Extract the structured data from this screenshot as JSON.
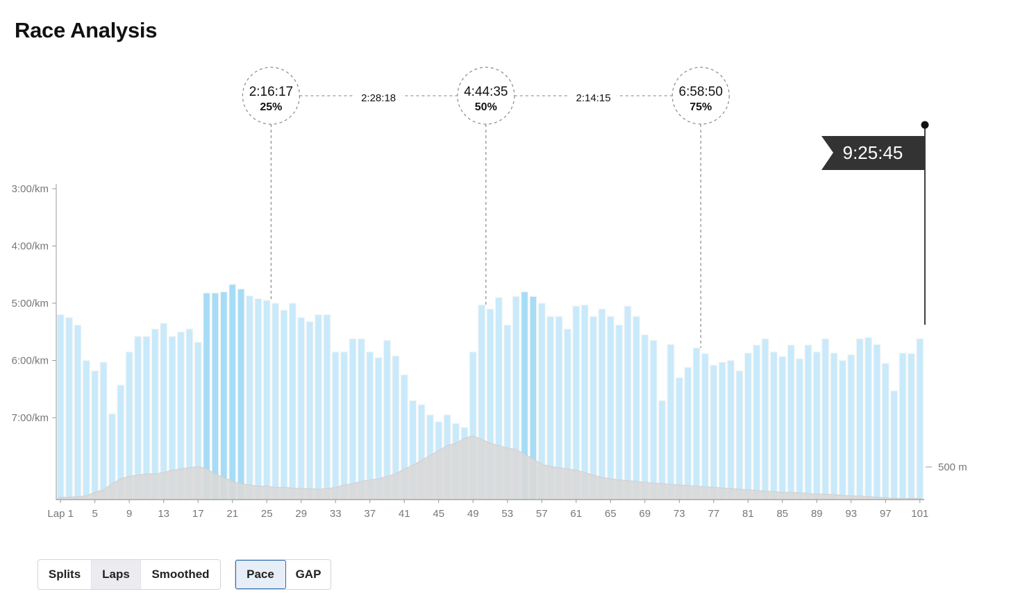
{
  "page": {
    "title": "Race Analysis"
  },
  "controls": {
    "view_group": [
      {
        "label": "Splits",
        "active": false
      },
      {
        "label": "Laps",
        "active": true
      },
      {
        "label": "Smoothed",
        "active": false
      }
    ],
    "metric_group": [
      {
        "label": "Pace",
        "active": true
      },
      {
        "label": "GAP",
        "active": false
      }
    ]
  },
  "chart_data": {
    "type": "bar",
    "x_tick_labels": [
      "Lap 1",
      "5",
      "9",
      "13",
      "17",
      "21",
      "25",
      "29",
      "33",
      "37",
      "41",
      "45",
      "49",
      "53",
      "57",
      "61",
      "65",
      "69",
      "73",
      "77",
      "81",
      "85",
      "89",
      "93",
      "97",
      "101"
    ],
    "x_ticks": [
      1,
      5,
      9,
      13,
      17,
      21,
      25,
      29,
      33,
      37,
      41,
      45,
      49,
      53,
      57,
      61,
      65,
      69,
      73,
      77,
      81,
      85,
      89,
      93,
      97,
      101
    ],
    "y_axis": {
      "unit": "min/km",
      "inverted": true,
      "tick_values": [
        3,
        4,
        5,
        6,
        7
      ],
      "tick_labels": [
        "3:00/km",
        "4:00/km",
        "5:00/km",
        "6:00/km",
        "7:00/km"
      ],
      "range": [
        3.0,
        8.5
      ]
    },
    "elevation_axis": {
      "tick_label": "500 m"
    },
    "laps": [
      1,
      2,
      3,
      4,
      5,
      6,
      7,
      8,
      9,
      10,
      11,
      12,
      13,
      14,
      15,
      16,
      17,
      18,
      19,
      20,
      21,
      22,
      23,
      24,
      25,
      26,
      27,
      28,
      29,
      30,
      31,
      32,
      33,
      34,
      35,
      36,
      37,
      38,
      39,
      40,
      41,
      42,
      43,
      44,
      45,
      46,
      47,
      48,
      49,
      50,
      51,
      52,
      53,
      54,
      55,
      56,
      57,
      58,
      59,
      60,
      61,
      62,
      63,
      64,
      65,
      66,
      67,
      68,
      69,
      70,
      71,
      72,
      73,
      74,
      75,
      76,
      77,
      78,
      79,
      80,
      81,
      82,
      83,
      84,
      85,
      86,
      87,
      88,
      89,
      90,
      91,
      92,
      93,
      94,
      95,
      96,
      97,
      98,
      99,
      100,
      101
    ],
    "pace_min_per_km": [
      5.2,
      5.25,
      5.38,
      6.0,
      6.18,
      6.03,
      6.93,
      6.43,
      5.85,
      5.58,
      5.58,
      5.45,
      5.35,
      5.58,
      5.5,
      5.45,
      5.68,
      4.82,
      4.82,
      4.8,
      4.67,
      4.75,
      4.87,
      4.92,
      4.95,
      5.0,
      5.12,
      5.0,
      5.25,
      5.32,
      5.2,
      5.2,
      5.85,
      5.85,
      5.62,
      5.62,
      5.85,
      5.95,
      5.65,
      5.92,
      6.25,
      6.7,
      6.77,
      6.95,
      7.07,
      6.95,
      7.1,
      7.17,
      5.85,
      5.03,
      5.1,
      4.9,
      5.38,
      4.88,
      4.8,
      4.88,
      5.0,
      5.23,
      5.23,
      5.45,
      5.05,
      5.03,
      5.23,
      5.1,
      5.23,
      5.38,
      5.05,
      5.23,
      5.55,
      5.65,
      6.7,
      5.72,
      6.3,
      6.12,
      5.78,
      5.88,
      6.08,
      6.03,
      6.0,
      6.18,
      5.87,
      5.73,
      5.62,
      5.85,
      5.93,
      5.73,
      5.97,
      5.73,
      5.85,
      5.62,
      5.87,
      6.0,
      5.9,
      5.62,
      5.6,
      5.72,
      6.05,
      6.53,
      5.87,
      5.88,
      5.62
    ],
    "elevation_rel": [
      0.02,
      0.02,
      0.025,
      0.03,
      0.06,
      0.08,
      0.13,
      0.17,
      0.19,
      0.2,
      0.21,
      0.21,
      0.22,
      0.24,
      0.25,
      0.26,
      0.27,
      0.25,
      0.21,
      0.18,
      0.15,
      0.13,
      0.12,
      0.11,
      0.11,
      0.1,
      0.1,
      0.095,
      0.09,
      0.09,
      0.085,
      0.09,
      0.1,
      0.12,
      0.13,
      0.15,
      0.16,
      0.17,
      0.19,
      0.21,
      0.25,
      0.28,
      0.32,
      0.36,
      0.4,
      0.44,
      0.46,
      0.5,
      0.52,
      0.49,
      0.46,
      0.44,
      0.42,
      0.41,
      0.37,
      0.33,
      0.29,
      0.27,
      0.26,
      0.25,
      0.24,
      0.22,
      0.2,
      0.18,
      0.17,
      0.16,
      0.155,
      0.15,
      0.14,
      0.135,
      0.13,
      0.125,
      0.12,
      0.115,
      0.11,
      0.105,
      0.1,
      0.095,
      0.09,
      0.085,
      0.08,
      0.075,
      0.07,
      0.065,
      0.06,
      0.06,
      0.055,
      0.05,
      0.045,
      0.045,
      0.04,
      0.035,
      0.03,
      0.03,
      0.025,
      0.02,
      0.015,
      0.01,
      0.01,
      0.01,
      0.01
    ],
    "highlighted_laps": [
      18,
      19,
      20,
      21,
      22,
      55,
      56
    ],
    "checkpoints": [
      {
        "lap": 25.5,
        "time": "2:16:17",
        "percent": "25%"
      },
      {
        "lap": 50.5,
        "time": "4:44:35",
        "percent": "50%"
      },
      {
        "lap": 75.5,
        "time": "6:58:50",
        "percent": "75%"
      }
    ],
    "segment_times": [
      "2:28:18",
      "2:14:15"
    ],
    "finish_time": "9:25:45",
    "colors": {
      "bar": "#c8eafb",
      "bar_highlight": "#a6dcf6",
      "elevation": "#d9d9d9",
      "axis": "#999999",
      "flag": "#333333",
      "active_border": "#2b6cb0"
    }
  }
}
